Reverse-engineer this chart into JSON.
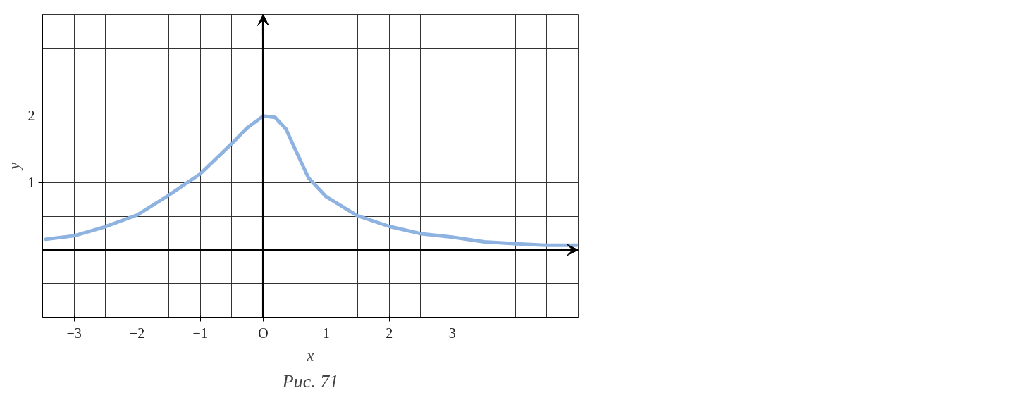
{
  "chart_data": {
    "type": "line",
    "x": [
      -3.45,
      -3,
      -2.52,
      -2,
      -1.52,
      -1,
      -0.51,
      -0.26,
      0,
      0.19,
      0.36,
      0.51,
      0.72,
      1,
      1.49,
      2,
      2.51,
      3,
      3.51,
      4.03,
      4.5,
      4.97
    ],
    "series": [
      {
        "color": "#8fb3e0",
        "values": [
          0.16,
          0.21,
          0.34,
          0.52,
          0.8,
          1.13,
          1.57,
          1.81,
          1.99,
          1.97,
          1.8,
          1.49,
          1.07,
          0.79,
          0.51,
          0.35,
          0.24,
          0.19,
          0.12,
          0.09,
          0.07,
          0.07
        ]
      }
    ],
    "xlim": [
      -3.5,
      5
    ],
    "ylim": [
      -1,
      3.5
    ],
    "xticks": [
      -3,
      -2,
      -1,
      {
        "value": 0,
        "label": "O"
      },
      1,
      2,
      3
    ],
    "yticks": [
      1,
      2
    ],
    "xlabel": "x",
    "ylabel": "y",
    "grid": true,
    "line_style": "solid",
    "annotations": [
      "Рис. 71"
    ]
  }
}
